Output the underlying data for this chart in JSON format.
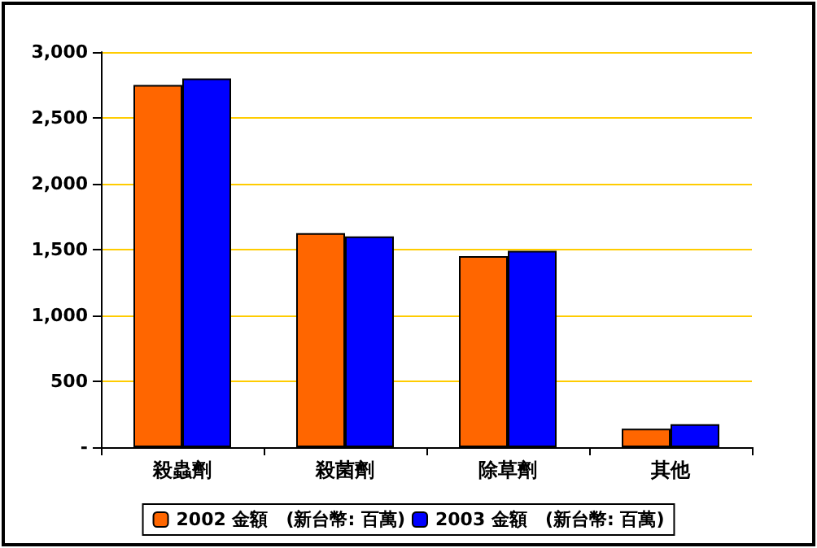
{
  "chart_data": {
    "type": "bar",
    "categories": [
      "殺蟲劑",
      "殺菌劑",
      "除草劑",
      "其他"
    ],
    "series": [
      {
        "name": "2002 金額　(新台幣: 百萬)",
        "color": "#ff6600",
        "values": [
          2750,
          1625,
          1450,
          140
        ]
      },
      {
        "name": "2003 金額　(新台幣: 百萬)",
        "color": "#0000ff",
        "values": [
          2800,
          1600,
          1490,
          175
        ]
      }
    ],
    "ylim": [
      0,
      3000
    ],
    "yticks": [
      {
        "value": 0,
        "label": "-"
      },
      {
        "value": 500,
        "label": "500"
      },
      {
        "value": 1000,
        "label": "1,000"
      },
      {
        "value": 1500,
        "label": "1,500"
      },
      {
        "value": 2000,
        "label": "2,000"
      },
      {
        "value": 2500,
        "label": "2,500"
      },
      {
        "value": 3000,
        "label": "3,000"
      }
    ],
    "grid": "y",
    "legend": "bottom"
  }
}
